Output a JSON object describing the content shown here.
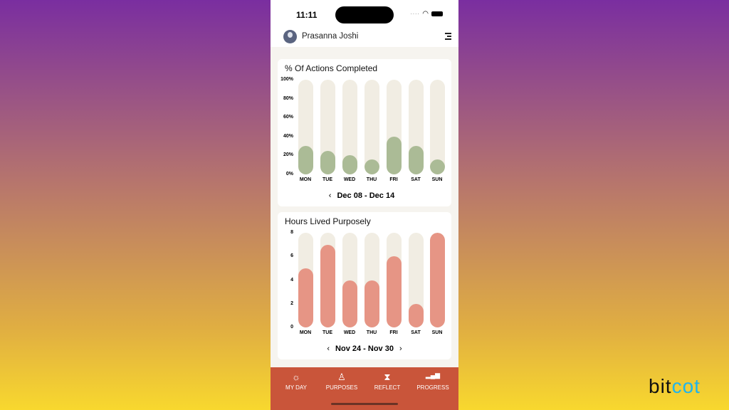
{
  "status": {
    "time": "11:11"
  },
  "header": {
    "user_name": "Prasanna Joshi"
  },
  "charts_colors": {
    "track": "#f1ede3",
    "actions": "#abbb96",
    "hours": "#e69585",
    "nav": "#c9553a"
  },
  "chart_data": [
    {
      "type": "bar",
      "title": "% Of Actions Completed",
      "categories": [
        "MON",
        "TUE",
        "WED",
        "THU",
        "FRI",
        "SAT",
        "SUN"
      ],
      "values": [
        30,
        25,
        20,
        15,
        40,
        30,
        15
      ],
      "yticks": [
        "100%",
        "80%",
        "60%",
        "40%",
        "20%",
        "0%"
      ],
      "ylim": [
        0,
        100
      ],
      "range_label": "Dec 08 - Dec 14",
      "prev": "‹",
      "next": ""
    },
    {
      "type": "bar",
      "title": "Hours Lived Purposely",
      "categories": [
        "MON",
        "TUE",
        "WED",
        "THU",
        "FRI",
        "SAT",
        "SUN"
      ],
      "values": [
        5,
        7,
        4,
        4,
        6,
        2,
        8
      ],
      "yticks": [
        "8",
        "6",
        "4",
        "2",
        "0"
      ],
      "ylim": [
        0,
        8
      ],
      "range_label": "Nov 24 - Nov 30",
      "prev": "‹",
      "next": "›"
    }
  ],
  "nav": [
    {
      "label": "MY DAY",
      "icon": "☼"
    },
    {
      "label": "PURPOSES",
      "icon": "♙"
    },
    {
      "label": "REFLECT",
      "icon": "⧗"
    },
    {
      "label": "PROGRESS",
      "icon": "▂▄▆"
    }
  ],
  "brand": {
    "part1": "bit",
    "part2": "cot"
  }
}
